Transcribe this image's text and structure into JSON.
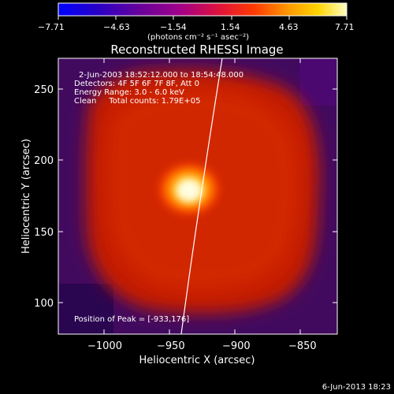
{
  "colorbar": {
    "ticks": [
      "−7.71",
      "−4.63",
      "−1.54",
      "1.54",
      "4.63",
      "7.71"
    ],
    "units_label": "(photons cm⁻² s⁻¹ asec⁻²)"
  },
  "title": "Reconstructed RHESSI Image",
  "info": {
    "time_range": "2-Jun-2003 18:52:12.000 to 18:54:48.000",
    "detectors": "Detectors: 4F 5F 6F 7F 8F, Att 0",
    "energy_range": "Energy Range: 3.0 - 6.0 keV",
    "method_counts": "Clean     Total counts: 1.79E+05",
    "peak_position": "Position of Peak = [-933,176]"
  },
  "axes": {
    "xlabel": "Heliocentric X (arcsec)",
    "ylabel": "Heliocentric Y (arcsec)",
    "xticks": [
      "−1000",
      "−950",
      "−900",
      "−850"
    ],
    "yticks": [
      "250",
      "200",
      "150",
      "100"
    ]
  },
  "footer": {
    "date": "6-Jun-2013 18:23"
  },
  "colors": {
    "background": "#000000",
    "frame": "#ffffff",
    "limb_line": "#ffffff"
  }
}
